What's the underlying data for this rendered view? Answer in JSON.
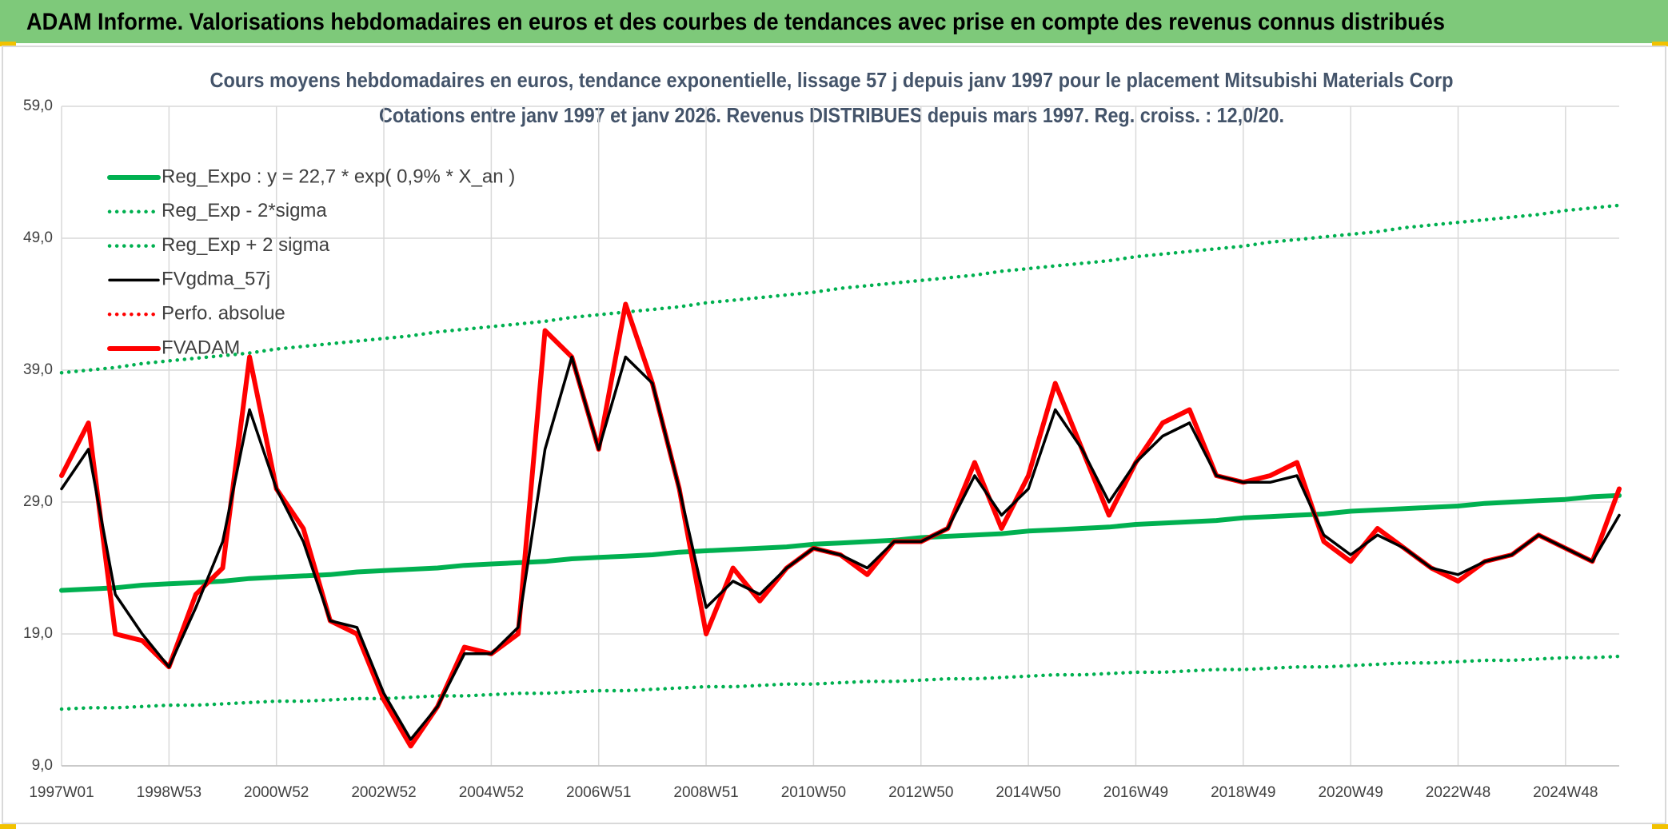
{
  "header": {
    "title": "ADAM Informe. Valorisations hebdomadaires en euros et des courbes de tendances avec prise en compte des revenus connus distribués"
  },
  "chart_data": {
    "type": "line",
    "title": "Cours moyens hebdomadaires en euros, tendance exponentielle, lissage 57 j depuis janv 1997 pour le placement Mitsubishi Materials Corp",
    "subtitle": "Cotations entre janv 1997 et janv 2026. Revenus DISTRIBUES depuis mars 1997. Reg. croiss. : 12,0/20.",
    "categories": [
      "1997W01",
      null,
      null,
      null,
      "1998W53",
      null,
      null,
      null,
      "2000W52",
      null,
      null,
      null,
      "2002W52",
      null,
      null,
      null,
      "2004W52",
      null,
      null,
      null,
      "2006W51",
      null,
      null,
      null,
      "2008W51",
      null,
      null,
      null,
      "2010W50",
      null,
      null,
      null,
      "2012W50",
      null,
      null,
      null,
      "2014W50",
      null,
      null,
      null,
      "2016W49",
      null,
      null,
      null,
      "2018W49",
      null,
      null,
      null,
      "2020W49",
      null,
      null,
      null,
      "2022W48",
      null,
      null,
      null,
      "2024W48",
      null,
      null
    ],
    "ylim": [
      9,
      59
    ],
    "yticks": [
      {
        "value": 9,
        "label": "9,0"
      },
      {
        "value": 19,
        "label": "19,0"
      },
      {
        "value": 29,
        "label": "29,0"
      },
      {
        "value": 39,
        "label": "39,0"
      },
      {
        "value": 49,
        "label": "49,0"
      },
      {
        "value": 59,
        "label": "59,0"
      }
    ],
    "grid": true,
    "legend": "top-left",
    "series": [
      {
        "name": "Reg_Expo : y = 22,7 * exp( 0,9% *  X_an )",
        "color": "#00b050",
        "style": "thick",
        "values": [
          22.3,
          22.4,
          22.5,
          22.7,
          22.8,
          22.9,
          23.0,
          23.2,
          23.3,
          23.4,
          23.5,
          23.7,
          23.8,
          23.9,
          24.0,
          24.2,
          24.3,
          24.4,
          24.5,
          24.7,
          24.8,
          24.9,
          25.0,
          25.2,
          25.3,
          25.4,
          25.5,
          25.6,
          25.8,
          25.9,
          26.0,
          26.1,
          26.3,
          26.4,
          26.5,
          26.6,
          26.8,
          26.9,
          27.0,
          27.1,
          27.3,
          27.4,
          27.5,
          27.6,
          27.8,
          27.9,
          28.0,
          28.1,
          28.3,
          28.4,
          28.5,
          28.6,
          28.7,
          28.9,
          29.0,
          29.1,
          29.2,
          29.4,
          29.5
        ]
      },
      {
        "name": "Reg_Exp - 2*sigma",
        "color": "#00b050",
        "style": "dotted",
        "values": [
          13.3,
          13.4,
          13.4,
          13.5,
          13.6,
          13.6,
          13.7,
          13.8,
          13.9,
          13.9,
          14.0,
          14.1,
          14.1,
          14.2,
          14.3,
          14.3,
          14.4,
          14.5,
          14.5,
          14.6,
          14.7,
          14.7,
          14.8,
          14.9,
          15.0,
          15.0,
          15.1,
          15.2,
          15.2,
          15.3,
          15.4,
          15.4,
          15.5,
          15.6,
          15.6,
          15.7,
          15.8,
          15.9,
          15.9,
          16.0,
          16.1,
          16.1,
          16.2,
          16.3,
          16.3,
          16.4,
          16.5,
          16.5,
          16.6,
          16.7,
          16.8,
          16.8,
          16.9,
          17.0,
          17.0,
          17.1,
          17.2,
          17.2,
          17.3
        ]
      },
      {
        "name": "Reg_Exp + 2 sigma",
        "color": "#00b050",
        "style": "dotted",
        "values": [
          38.8,
          39.0,
          39.2,
          39.5,
          39.7,
          39.9,
          40.1,
          40.3,
          40.6,
          40.8,
          41.0,
          41.2,
          41.4,
          41.6,
          41.9,
          42.1,
          42.3,
          42.5,
          42.7,
          43.0,
          43.2,
          43.4,
          43.6,
          43.8,
          44.1,
          44.3,
          44.5,
          44.7,
          44.9,
          45.2,
          45.4,
          45.6,
          45.8,
          46.0,
          46.2,
          46.5,
          46.7,
          46.9,
          47.1,
          47.3,
          47.6,
          47.8,
          48.0,
          48.2,
          48.4,
          48.7,
          48.9,
          49.1,
          49.3,
          49.5,
          49.8,
          50.0,
          50.2,
          50.4,
          50.6,
          50.8,
          51.1,
          51.3,
          51.5
        ]
      },
      {
        "name": "FVgdma_57j",
        "color": "#000000",
        "style": "medium",
        "values": [
          30,
          33,
          22,
          19,
          16.5,
          21,
          26,
          36,
          30,
          26,
          20,
          19.5,
          14.5,
          11,
          13.5,
          17.5,
          17.5,
          19.5,
          33,
          40,
          33,
          40,
          38,
          30,
          21,
          23,
          22,
          24,
          25.5,
          25,
          24,
          26,
          26,
          27,
          31,
          28,
          30,
          36,
          33,
          29,
          32,
          34,
          35,
          31,
          30.5,
          30.5,
          31,
          26.5,
          25,
          26.5,
          25.5,
          24,
          23.5,
          24.5,
          25,
          26.5,
          25.5,
          24.5,
          28
        ]
      },
      {
        "name": "Perfo. absolue",
        "color": "#ff0000",
        "style": "dotted",
        "values": [
          null,
          null,
          null,
          null,
          null,
          null,
          null,
          null,
          null,
          null,
          null,
          null,
          null,
          null,
          null,
          null,
          null,
          null,
          null,
          null,
          null,
          null,
          null,
          null,
          null,
          null,
          null,
          null,
          null,
          null,
          null,
          null,
          null,
          null,
          null,
          null,
          null,
          null,
          null,
          null,
          null,
          null,
          null,
          null,
          null,
          null,
          null,
          null,
          null,
          null,
          null,
          null,
          null,
          null,
          null,
          null,
          null,
          null,
          null
        ]
      },
      {
        "name": "FVADAM",
        "color": "#ff0000",
        "style": "thick",
        "values": [
          31,
          35,
          19,
          18.5,
          16.5,
          22,
          24,
          40,
          30,
          27,
          20,
          19,
          14,
          10.5,
          13.5,
          18,
          17.5,
          19,
          42,
          40,
          33,
          44,
          38,
          30,
          19,
          24,
          21.5,
          24,
          25.5,
          25,
          23.5,
          26,
          26,
          27,
          32,
          27,
          31,
          38,
          33,
          28,
          32,
          35,
          36,
          31,
          30.5,
          31,
          32,
          26,
          24.5,
          27,
          25.5,
          24,
          23,
          24.5,
          25,
          26.5,
          25.5,
          24.5,
          30
        ]
      }
    ]
  }
}
